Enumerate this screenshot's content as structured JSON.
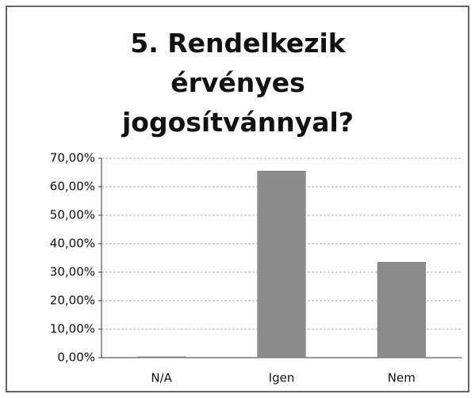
{
  "chart_data": {
    "type": "bar",
    "title": "5. Rendelkezik érvényes jogosítvánnyal?",
    "categories": [
      "N/A",
      "Igen",
      "Nem"
    ],
    "values": [
      0.3,
      65.5,
      33.5
    ],
    "color": "#8c8c8c",
    "ylim": [
      0,
      70
    ],
    "yticks": [
      {
        "value": 0,
        "label": "0,00%"
      },
      {
        "value": 10,
        "label": "10,00%"
      },
      {
        "value": 20,
        "label": "20,00%"
      },
      {
        "value": 30,
        "label": "30,00%"
      },
      {
        "value": 40,
        "label": "40,00%"
      },
      {
        "value": 50,
        "label": "50,00%"
      },
      {
        "value": 60,
        "label": "60,00%"
      },
      {
        "value": 70,
        "label": "70,00%"
      }
    ],
    "grid": true
  }
}
